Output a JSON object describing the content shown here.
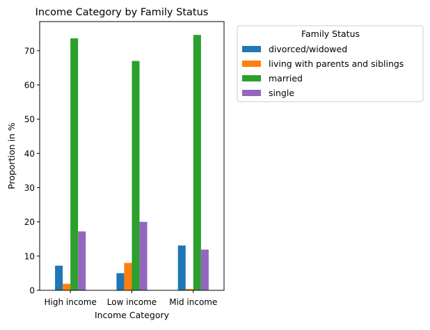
{
  "chart_data": {
    "type": "bar",
    "title": "Income Category by Family Status",
    "xlabel": "Income Category",
    "ylabel": "Proportion in %",
    "categories": [
      "High income",
      "Low income",
      "Mid income"
    ],
    "ylim": [
      0,
      78.5
    ],
    "yticks": [
      0,
      10,
      20,
      30,
      40,
      50,
      60,
      70
    ],
    "grid": false,
    "legend": {
      "title": "Family Status",
      "placement": "outside-right-top"
    },
    "series": [
      {
        "name": "divorced/widowed",
        "color": "#1f77b4",
        "values": [
          7.2,
          5.0,
          13.1
        ]
      },
      {
        "name": "living with parents and siblings",
        "color": "#ff7f0e",
        "values": [
          1.9,
          8.0,
          0.4
        ]
      },
      {
        "name": "married",
        "color": "#2ca02c",
        "values": [
          73.6,
          67.0,
          74.6
        ]
      },
      {
        "name": "single",
        "color": "#9467bd",
        "values": [
          17.2,
          20.0,
          11.9
        ]
      }
    ]
  }
}
